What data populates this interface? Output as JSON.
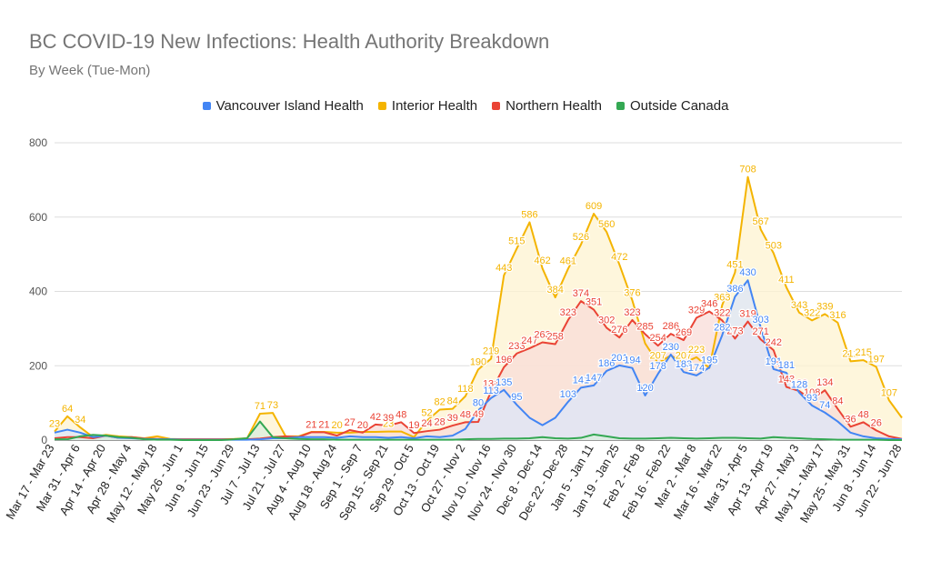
{
  "chart_data": {
    "type": "area",
    "title": "BC COVID-19 New Infections: Health Authority Breakdown",
    "subtitle": "By Week (Tue-Mon)",
    "xlabel": "",
    "ylabel": "",
    "ylim": [
      0,
      800
    ],
    "yticks": [
      0,
      200,
      400,
      600,
      800
    ],
    "grid": true,
    "legend_position": "top",
    "x": [
      "Mar 17 - Mar 23",
      "Mar 24 - Mar 30",
      "Mar 31 - Apr 6",
      "Apr 7 - Apr 13",
      "Apr 14 - Apr 20",
      "Apr 21 - Apr 27",
      "Apr 28 - May 4",
      "May 5 - May 11",
      "May 12 - May 18",
      "May 19 - May 25",
      "May 26 - Jun 1",
      "Jun 2 - Jun 8",
      "Jun 9 - Jun 15",
      "Jun 16 - Jun 22",
      "Jun 23 - Jun 29",
      "Jun 30 - Jul 6",
      "Jul 7 - Jul 13",
      "Jul 14 - Jul 20",
      "Jul 21 - Jul 27",
      "Jul 28 - Aug 3",
      "Aug 4 - Aug 10",
      "Aug 11 - Aug 17",
      "Aug 18 - Aug 24",
      "Aug 25 - Aug 31",
      "Sep 1 - Sep 7",
      "Sep 8 - Sep 14",
      "Sep 15 - Sep 21",
      "Sep 22 - Sep 28",
      "Sep 29 - Oct 5",
      "Oct 6 - Oct 12",
      "Oct 13 - Oct 19",
      "Oct 20 - Oct 26",
      "Oct 27 - Nov 2",
      "Nov 3 - Nov 9",
      "Nov 10 - Nov 16",
      "Nov 17 - Nov 23",
      "Nov 24 - Nov 30",
      "Dec 1 - Dec 7",
      "Dec 8 - Dec 14",
      "Dec 15 - Dec 21",
      "Dec 22 - Dec 28",
      "Dec 29 - Jan 4",
      "Jan 5 - Jan 11",
      "Jan 12 - Jan 18",
      "Jan 19 - Jan 25",
      "Jan 26 - Feb 1",
      "Feb 2 - Feb 8",
      "Feb 9 - Feb 15",
      "Feb 16 - Feb 22",
      "Feb 23 - Mar 1",
      "Mar 2 - Mar 8",
      "Mar 9 - Mar 15",
      "Mar 16 - Mar 22",
      "Mar 23 - Mar 29",
      "Mar 31 - Apr 5",
      "Apr 6 - Apr 12",
      "Apr 13 - Apr 19",
      "Apr 20 - Apr 26",
      "Apr 27 - May 3",
      "May 4 - May 10",
      "May 11 - May 17",
      "May 18 - May 24",
      "May 25 - May 31",
      "Jun 1 - Jun 7",
      "Jun 8 - Jun 14",
      "Jun 15 - Jun 21",
      "Jun 22 - Jun 28"
    ],
    "x_tick_labels": [
      "Mar 17 - Mar 23",
      "Mar 31 - Apr 6",
      "Apr 14 - Apr 20",
      "Apr 28 - May 4",
      "May 12 - May 18",
      "May 26 - Jun 1",
      "Jun 9 - Jun 15",
      "Jun 23 - Jun 29",
      "Jul 7 - Jul 13",
      "Jul 21 - Jul 27",
      "Aug 4 - Aug 10",
      "Aug 18 - Aug 24",
      "Sep 1 - Sep 7",
      "Sep 15 - Sep 21",
      "Sep 29 - Oct 5",
      "Oct 13 - Oct 19",
      "Oct 27 - Nov 2",
      "Nov 10 - Nov 16",
      "Nov 24 - Nov 30",
      "Dec 8 - Dec 14",
      "Dec 22 - Dec 28",
      "Jan 5 - Jan 11",
      "Jan 19 - Jan 25",
      "Feb 2 - Feb 8",
      "Feb 16 - Feb 22",
      "Mar 2 - Mar 8",
      "Mar 16 - Mar 22",
      "Mar 31 - Apr 5",
      "Apr 13 - Apr 19",
      "Apr 27 - May 3",
      "May 11 - May 17",
      "May 25 - May 31",
      "Jun 8 - Jun 14",
      "Jun 22 - Jun 28"
    ],
    "series": [
      {
        "name": "Interior Health",
        "color": "#f4b400",
        "fill": "#fdf3d0",
        "values": [
          23,
          64,
          34,
          8,
          14,
          10,
          8,
          5,
          10,
          3,
          2,
          2,
          2,
          2,
          3,
          5,
          71,
          73,
          10,
          10,
          22,
          22,
          20,
          20,
          22,
          22,
          23,
          23,
          8,
          52,
          82,
          84,
          118,
          190,
          219,
          443,
          515,
          586,
          462,
          384,
          461,
          526,
          609,
          560,
          472,
          376,
          260,
          207,
          228,
          207,
          223,
          194,
          363,
          451,
          708,
          567,
          503,
          411,
          343,
          322,
          339,
          316,
          212,
          215,
          197,
          107,
          60
        ],
        "labels": [
          23,
          64,
          34,
          null,
          null,
          null,
          null,
          null,
          null,
          null,
          null,
          null,
          null,
          null,
          null,
          null,
          71,
          73,
          null,
          null,
          22,
          null,
          20,
          null,
          22,
          null,
          23,
          null,
          null,
          52,
          82,
          84,
          118,
          190,
          219,
          443,
          515,
          586,
          462,
          384,
          461,
          526,
          609,
          560,
          472,
          376,
          null,
          207,
          228,
          207,
          223,
          194,
          363,
          451,
          708,
          567,
          503,
          411,
          343,
          322,
          339,
          316,
          212,
          215,
          197,
          107,
          null
        ]
      },
      {
        "name": "Northern Health",
        "color": "#ea4335",
        "fill": "#f8dcd8",
        "values": [
          5,
          8,
          8,
          5,
          12,
          6,
          8,
          4,
          3,
          2,
          2,
          2,
          2,
          2,
          2,
          2,
          4,
          8,
          10,
          8,
          21,
          21,
          12,
          27,
          20,
          42,
          39,
          48,
          19,
          24,
          28,
          39,
          48,
          49,
          131,
          196,
          233,
          247,
          263,
          258,
          323,
          374,
          351,
          302,
          276,
          323,
          285,
          254,
          286,
          269,
          329,
          346,
          322,
          273,
          319,
          271,
          242,
          143,
          132,
          108,
          134,
          84,
          36,
          48,
          26,
          10,
          3
        ],
        "labels": [
          null,
          null,
          null,
          null,
          null,
          null,
          null,
          null,
          null,
          null,
          null,
          null,
          null,
          null,
          null,
          null,
          null,
          null,
          null,
          null,
          21,
          21,
          null,
          27,
          20,
          42,
          39,
          48,
          19,
          24,
          28,
          39,
          48,
          49,
          131,
          196,
          233,
          247,
          263,
          258,
          323,
          374,
          351,
          302,
          276,
          323,
          285,
          254,
          286,
          269,
          329,
          346,
          322,
          273,
          319,
          271,
          242,
          143,
          132,
          108,
          134,
          84,
          36,
          48,
          26,
          null,
          null
        ]
      },
      {
        "name": "Vancouver Island Health",
        "color": "#4285f4",
        "fill": "#dce6f8",
        "values": [
          20,
          28,
          20,
          8,
          12,
          6,
          5,
          3,
          2,
          2,
          1,
          1,
          1,
          1,
          1,
          1,
          2,
          5,
          5,
          8,
          8,
          8,
          6,
          10,
          8,
          8,
          6,
          8,
          5,
          10,
          8,
          12,
          30,
          80,
          113,
          135,
          95,
          60,
          40,
          60,
          103,
          141,
          147,
          186,
          201,
          194,
          120,
          178,
          230,
          183,
          174,
          195,
          282,
          386,
          430,
          303,
          191,
          181,
          128,
          93,
          74,
          50,
          20,
          10,
          5,
          3,
          2
        ],
        "labels": [
          null,
          null,
          null,
          null,
          null,
          null,
          null,
          null,
          null,
          null,
          null,
          null,
          null,
          null,
          null,
          null,
          null,
          null,
          null,
          null,
          null,
          null,
          null,
          null,
          null,
          null,
          null,
          null,
          null,
          null,
          null,
          null,
          null,
          80,
          113,
          135,
          95,
          null,
          null,
          null,
          103,
          141,
          147,
          186,
          201,
          194,
          120,
          178,
          230,
          183,
          174,
          195,
          282,
          386,
          430,
          303,
          191,
          181,
          128,
          93,
          74,
          null,
          null,
          null,
          null,
          null,
          null
        ]
      },
      {
        "name": "Outside Canada",
        "color": "#34a853",
        "fill": "#d9eedd",
        "values": [
          2,
          2,
          10,
          14,
          12,
          8,
          6,
          2,
          1,
          1,
          0,
          0,
          0,
          0,
          2,
          5,
          50,
          8,
          5,
          3,
          2,
          2,
          1,
          1,
          1,
          1,
          1,
          1,
          1,
          1,
          1,
          1,
          2,
          3,
          3,
          4,
          4,
          5,
          8,
          5,
          4,
          6,
          15,
          10,
          5,
          4,
          4,
          5,
          6,
          5,
          4,
          5,
          6,
          6,
          5,
          4,
          8,
          6,
          5,
          3,
          2,
          1,
          1,
          1,
          1,
          0,
          0
        ],
        "labels": []
      }
    ]
  },
  "legend_order": [
    "Vancouver Island Health",
    "Interior Health",
    "Northern Health",
    "Outside Canada"
  ]
}
